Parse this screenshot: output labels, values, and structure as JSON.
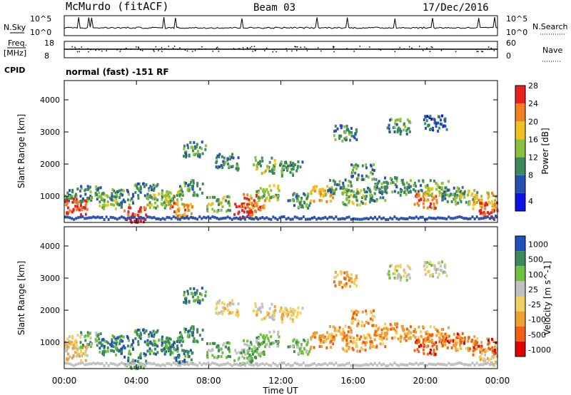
{
  "header": {
    "station": "McMurdo (fitACF)",
    "beam": "Beam 03",
    "date": "17/Dec/2016"
  },
  "noise_panel": {
    "left_label": "N.Sky",
    "right_label": "N.Search",
    "left_ticks": [
      "10^5",
      "10^0"
    ],
    "right_ticks": [
      "10^5",
      "10^0"
    ]
  },
  "freq_panel": {
    "left_label_line1": "Freq.",
    "left_label_line2": "[MHz]",
    "right_label": "Nave",
    "left_ticks": [
      "18",
      "8"
    ],
    "right_ticks": [
      "60",
      "0"
    ]
  },
  "cpid": {
    "label": "CPID",
    "value": "normal (fast) -151 RF"
  },
  "chart_data": [
    {
      "type": "heatmap",
      "title": "",
      "ylabel": "Slant Range [km]",
      "ylim": [
        180,
        4600
      ],
      "yticks": [
        "1000",
        "2000",
        "3000",
        "4000"
      ],
      "xlim": [
        "00:00",
        "24:00"
      ],
      "colorbar": {
        "label": "Power [dB]",
        "ticks": [
          "4",
          "8",
          "12",
          "16",
          "20",
          "24",
          "28"
        ],
        "colors": [
          "#1010e8",
          "#2850b0",
          "#3c8a5a",
          "#88c040",
          "#f0c020",
          "#f08020",
          "#e82020"
        ]
      },
      "description_of_features": "Scatter mostly between 300 and 1500 km through the day, scattered patches up to 3500 km; strongest echoes (>24 dB) near 00:30, 04:00, 09:30-10:30, 20:00 and 23:30."
    },
    {
      "type": "heatmap",
      "title": "",
      "ylabel": "Slant Range [km]",
      "xlabel": "Time UT",
      "ylim": [
        180,
        4600
      ],
      "yticks": [
        "1000",
        "2000",
        "3000",
        "4000"
      ],
      "xticks": [
        "00:00",
        "04:00",
        "08:00",
        "12:00",
        "16:00",
        "20:00",
        "00:00"
      ],
      "colorbar": {
        "label": "Velocity [m s^-1]",
        "ticks": [
          "1000",
          "500",
          "100",
          "25",
          "-25",
          "-100",
          "-500",
          "-1000"
        ],
        "colors": [
          "#2050c0",
          "#3c8a5a",
          "#70c040",
          "#c0c0c0",
          "#f0d060",
          "#f0a030",
          "#f06010",
          "#e00000"
        ]
      }
    }
  ]
}
